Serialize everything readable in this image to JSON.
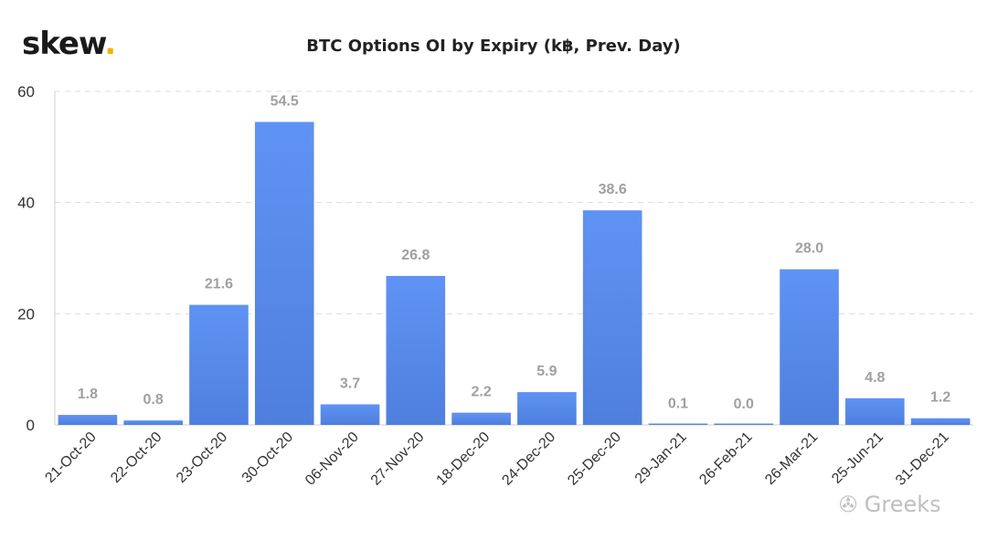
{
  "logo": {
    "text": "skew",
    "dot": ".",
    "accent": "#f2b400"
  },
  "watermark": {
    "icon": "wechat-icon",
    "text": "Greeks"
  },
  "chart_data": {
    "type": "bar",
    "title": "BTC Options OI by Expiry (k฿, Prev. Day)",
    "xlabel": "",
    "ylabel": "",
    "categories": [
      "21-Oct-20",
      "22-Oct-20",
      "23-Oct-20",
      "30-Oct-20",
      "06-Nov-20",
      "27-Nov-20",
      "18-Dec-20",
      "24-Dec-20",
      "25-Dec-20",
      "29-Jan-21",
      "26-Feb-21",
      "26-Mar-21",
      "25-Jun-21",
      "31-Dec-21"
    ],
    "values": [
      1.8,
      0.8,
      21.6,
      54.5,
      3.7,
      26.8,
      2.2,
      5.9,
      38.6,
      0.1,
      0.0,
      28.0,
      4.8,
      1.2
    ],
    "value_labels": [
      "1.8",
      "0.8",
      "21.6",
      "54.5",
      "3.7",
      "26.8",
      "2.2",
      "5.9",
      "38.6",
      "0.1",
      "0.0",
      "28.0",
      "4.8",
      "1.2"
    ],
    "ylim": [
      0,
      60
    ],
    "yticks": [
      0,
      20,
      40,
      60
    ],
    "grid": true,
    "bar_color": "#5b8def",
    "label_color": "#a0a0a0"
  }
}
